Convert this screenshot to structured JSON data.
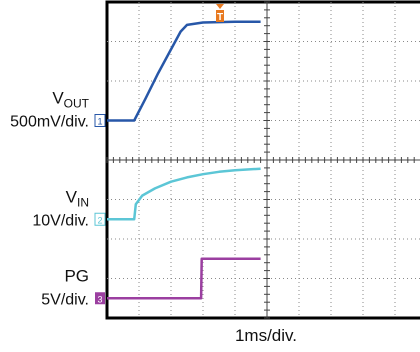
{
  "chart_data": {
    "type": "line",
    "title": "",
    "xlabel": "1ms/div.",
    "ylabel": "",
    "grid": true,
    "x_unit": "ms",
    "x_range_ms": [
      0,
      4.8
    ],
    "divisions": {
      "x": 10,
      "y": 8
    },
    "trigger_marker": "T",
    "series": [
      {
        "id": "vout",
        "label_main": "V",
        "label_sub": "OUT",
        "scale": "500mV/div.",
        "channel": "1",
        "color": "#2757a8",
        "ground_div": 5.0,
        "points_div": [
          [
            0,
            5.0
          ],
          [
            0.85,
            5.0
          ],
          [
            1.2,
            5.55
          ],
          [
            1.6,
            6.2
          ],
          [
            2.0,
            6.8
          ],
          [
            2.3,
            7.25
          ],
          [
            2.5,
            7.42
          ],
          [
            3.0,
            7.48
          ],
          [
            4.0,
            7.5
          ],
          [
            4.8,
            7.5
          ]
        ]
      },
      {
        "id": "vin",
        "label_main": "V",
        "label_sub": "IN",
        "scale": "10V/div.",
        "channel": "2",
        "color": "#5cc6d6",
        "ground_div": 2.5,
        "points_div": [
          [
            0,
            2.5
          ],
          [
            0.85,
            2.5
          ],
          [
            0.9,
            2.88
          ],
          [
            1.1,
            3.1
          ],
          [
            1.5,
            3.28
          ],
          [
            2.0,
            3.45
          ],
          [
            2.5,
            3.56
          ],
          [
            3.0,
            3.64
          ],
          [
            3.5,
            3.7
          ],
          [
            4.0,
            3.74
          ],
          [
            4.8,
            3.78
          ]
        ]
      },
      {
        "id": "pg",
        "label_main": "PG",
        "label_sub": "",
        "scale": "5V/div.",
        "channel": "3",
        "color": "#9b3fa0",
        "ground_div": 0.5,
        "points_div": [
          [
            0,
            0.5
          ],
          [
            2.94,
            0.5
          ],
          [
            2.96,
            1.5
          ],
          [
            4.8,
            1.5
          ]
        ]
      }
    ]
  }
}
